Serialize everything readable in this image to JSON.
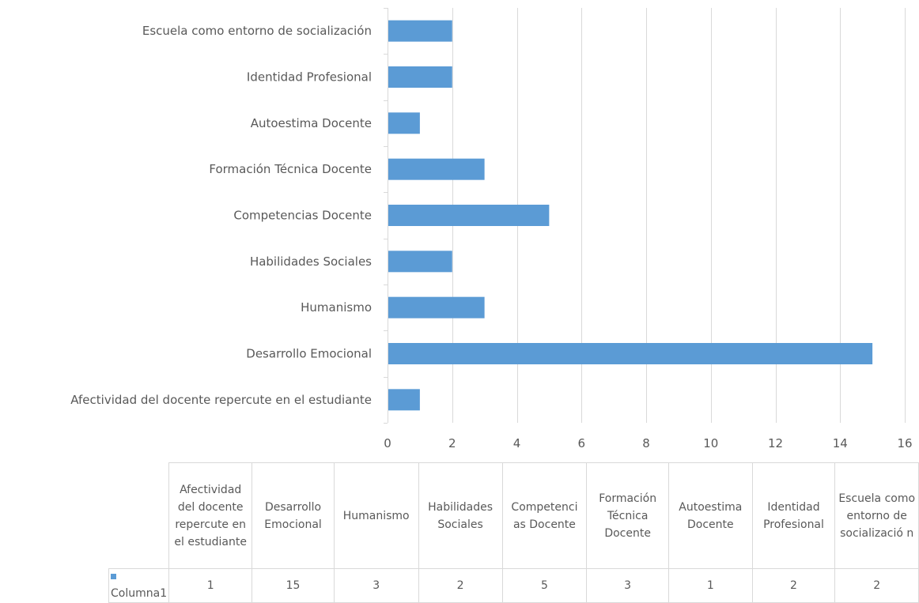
{
  "chart_data": {
    "type": "bar",
    "orientation": "horizontal",
    "categories": [
      "Afectividad del docente repercute en el estudiante",
      "Desarrollo Emocional",
      "Humanismo",
      "Habilidades Sociales",
      "Competencias Docente",
      "Formación Técnica Docente",
      "Autoestima Docente",
      "Identidad Profesional",
      "Escuela como entorno de socialización"
    ],
    "table_headers": [
      "Afectividad del docente repercute en el estudiante",
      "Desarrollo Emocional",
      "Humanismo",
      "Habilidades Sociales",
      "Competenci as Docente",
      "Formación Técnica Docente",
      "Autoestima Docente",
      "Identidad Profesional",
      "Escuela como entorno de socializació n"
    ],
    "series": [
      {
        "name": "Columna1",
        "values": [
          1,
          15,
          3,
          2,
          5,
          3,
          1,
          2,
          2
        ],
        "color": "#5b9bd5"
      }
    ],
    "xlim": [
      0,
      16
    ],
    "xticks": [
      0,
      2,
      4,
      6,
      8,
      10,
      12,
      14,
      16
    ],
    "grid": true,
    "legend_placement": "data-table",
    "title": "",
    "xlabel": "",
    "ylabel": ""
  }
}
